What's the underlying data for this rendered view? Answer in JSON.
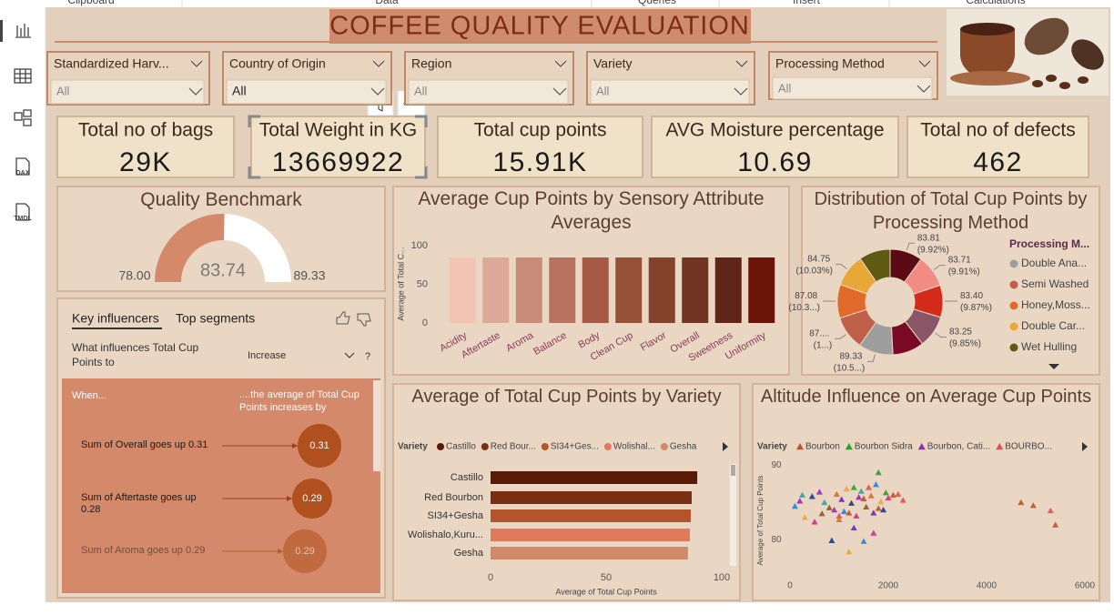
{
  "ribbon": {
    "groups": [
      "Clipboard",
      "Data",
      "Queries",
      "Insert",
      "Calculations"
    ]
  },
  "sidebar": {
    "labels": [
      "DAX",
      "TMDL"
    ]
  },
  "title": "COFFEE QUALITY EVALUATION",
  "slicers": [
    {
      "label": "Standardized Harv...",
      "value": "All"
    },
    {
      "label": "Country of Origin",
      "value": "All"
    },
    {
      "label": "Region",
      "value": "All"
    },
    {
      "label": "Variety",
      "value": "All"
    },
    {
      "label": "Processing Method",
      "value": "All"
    }
  ],
  "cards": [
    {
      "label": "Total no of bags",
      "value": "29K"
    },
    {
      "label": "Total Weight in KG",
      "value": "13669922"
    },
    {
      "label": "Total cup points",
      "value": "15.91K"
    },
    {
      "label": "AVG Moisture percentage",
      "value": "10.69"
    },
    {
      "label": "Total no of defects",
      "value": "462"
    }
  ],
  "key_influencers": {
    "tabs": [
      "Key influencers",
      "Top segments"
    ],
    "question": "What influences Total Cup Points to",
    "direction": "Increase",
    "help": "?",
    "when": "When...",
    "effect_header": "....the average of Total Cup Points increases by",
    "rows": [
      {
        "factor": "Sum of Overall goes up 0.31",
        "effect": "0.31"
      },
      {
        "factor": "Sum of Aftertaste goes up 0.28",
        "effect": "0.29"
      },
      {
        "factor": "Sum of Aroma goes up 0.29",
        "effect": "0.29"
      }
    ]
  },
  "chart_data": [
    {
      "type": "gauge",
      "title": "Quality Benchmark",
      "value": 83.74,
      "min": {
        "value": 78,
        "label": "78.00"
      },
      "max": 89.33,
      "color": "#d4896a",
      "track": "#ffffff"
    },
    {
      "type": "bar",
      "title": "Average Cup Points by Sensory Attribute Averages",
      "y_label": "Average of Total C...",
      "categories": [
        "Acidity",
        "Aftertaste",
        "Aroma",
        "Balance",
        "Body",
        "Clean Cup",
        "Flavor",
        "Overall",
        "Sweetness",
        "Uniformity"
      ],
      "values": [
        84.7,
        84.7,
        84.7,
        84.7,
        84.7,
        84.7,
        84.7,
        84.7,
        84.7,
        84.7
      ],
      "colors": [
        "#f2c4b3",
        "#dea898",
        "#c98c78",
        "#b87260",
        "#a65a45",
        "#955038",
        "#84412c",
        "#723422",
        "#5e2518",
        "#6a1508"
      ],
      "ylim": [
        0,
        100
      ],
      "yticks": [
        0,
        50,
        100
      ]
    },
    {
      "type": "donut",
      "title": "Distribution of Total Cup Points by Processing Method",
      "legend_title": "Processing M...",
      "categories": [
        null,
        null,
        null,
        null,
        null,
        "Double Ana...",
        "Semi Washed",
        "Honey,Moss...",
        "Double Car...",
        "Wet Hulling"
      ],
      "values": [
        83.81,
        83.71,
        83.4,
        83.25,
        81.2,
        89.33,
        87.5,
        87.08,
        84.75,
        80.97
      ],
      "value_labels": [
        "83.81 (9.92%)",
        "83.71 (9.91%)",
        "83.40 (9.87%)",
        "83.25 (9.85%)",
        null,
        "89.33 (10.5...)",
        "87.... (1...)",
        "87.08 (10.3...)",
        "84.75 (10.03%)",
        null
      ],
      "colors": [
        "#5c0a14",
        "#f28b82",
        "#d42a1a",
        "#8a5566",
        "#7a0a24",
        "#9e9e9e",
        "#c0604a",
        "#e06a2a",
        "#e8a838",
        "#5e5a14"
      ]
    },
    {
      "type": "hbar",
      "title": "Average of Total Cup Points by Variety",
      "legend_title": "Variety",
      "legend": [
        "Castillo",
        "Red Bour...",
        "SI34+Ges...",
        "Wolishal...",
        "Gesha"
      ],
      "categories": [
        "Castillo",
        "Red Bourbon",
        "SI34+Gesha",
        "Wolishalo,Kuru...",
        "Gesha"
      ],
      "values": [
        89.4,
        87.0,
        86.6,
        86.2,
        85.4
      ],
      "colors": [
        "#5a1a08",
        "#7a2e14",
        "#b5532a",
        "#e07a5a",
        "#d08a6a"
      ],
      "x_label": "Average of Total Cup Points",
      "xlim": [
        0,
        100
      ],
      "xticks": [
        0,
        50,
        100
      ]
    },
    {
      "type": "scatter",
      "title": "Altitude Influence on Average Cup Points",
      "legend_title": "Variety",
      "y_label": "Average of Total Cup Points",
      "xlim": [
        0,
        6000
      ],
      "xticks": [
        0,
        2000,
        4000,
        6000
      ],
      "ylim": [
        77,
        91
      ],
      "yticks": [
        80,
        90
      ],
      "series": [
        {
          "name": "Bourbon",
          "color": "#c0502a",
          "x": [
            1500,
            1800,
            2100,
            1200,
            4700,
            4950,
            5400
          ],
          "y": [
            85.5,
            84.2,
            86.0,
            83.6,
            85.0,
            84.6,
            82.0
          ]
        },
        {
          "name": "Bourbon Sidra",
          "color": "#2aa02a",
          "x": [
            1800,
            1300,
            1950
          ],
          "y": [
            89.0,
            87.0,
            86.3
          ]
        },
        {
          "name": "Bourbon, Cati...",
          "color": "#9a2ab0",
          "x": [
            200,
            600,
            900,
            1400
          ],
          "y": [
            85.2,
            86.4,
            84.0,
            85.7
          ]
        },
        {
          "name": "BOURBO...",
          "color": "#e05050",
          "x": [
            1600,
            2200,
            2300,
            1000,
            5300
          ],
          "y": [
            87.0,
            86.1,
            85.3,
            83.2,
            83.9
          ]
        },
        {
          "colors": [
            "#2a7fd4",
            "#e8a838",
            "#1a3a8a",
            "#d42a8a",
            "#3aa0a0",
            "#8a5a2a",
            "#e06a2a",
            "#6a2ab0"
          ],
          "x": [
            100,
            300,
            450,
            500,
            700,
            800,
            950,
            1050,
            1100,
            1150,
            1250,
            1350,
            1450,
            1550,
            1650,
            1700,
            1750,
            1850,
            1900,
            2000,
            250,
            650,
            1000,
            1300,
            1500,
            1200,
            850,
            1700
          ],
          "y": [
            84.5,
            83.0,
            85.8,
            82.4,
            85.0,
            84.3,
            86.1,
            85.4,
            83.8,
            86.8,
            84.9,
            83.2,
            86.5,
            84.4,
            85.9,
            83.6,
            87.4,
            85.1,
            84.0,
            85.6,
            86.0,
            83.5,
            82.7,
            81.6,
            79.8,
            78.4,
            79.9,
            80.9
          ]
        }
      ]
    }
  ]
}
